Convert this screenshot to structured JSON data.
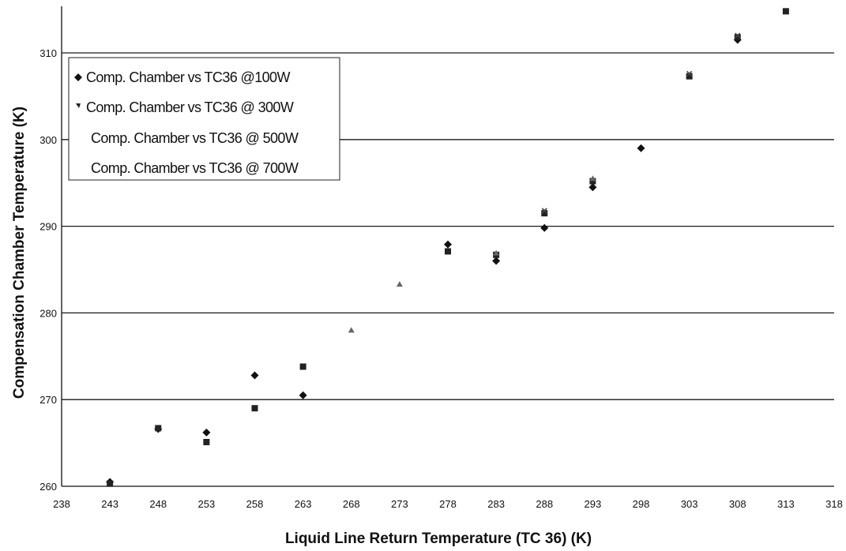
{
  "chart_data": {
    "type": "scatter",
    "title": "",
    "xlabel": "Liquid Line Return Temperature (TC 36) (K)",
    "ylabel": "Compensation Chamber Temperature (K)",
    "xlim": [
      238,
      318
    ],
    "ylim": [
      260,
      310
    ],
    "xticks": [
      238,
      243,
      248,
      253,
      258,
      263,
      268,
      273,
      278,
      283,
      288,
      293,
      298,
      303,
      308,
      313,
      318
    ],
    "yticks": [
      260,
      270,
      280,
      290,
      300,
      310
    ],
    "grid": "horizontal",
    "legend_position": "top-left",
    "series": [
      {
        "name": "Comp. Chamber vs TC36 @100W",
        "marker": "diamond",
        "color": "#111111",
        "points": [
          [
            243,
            260.5
          ],
          [
            248,
            266.6
          ],
          [
            253,
            266.2
          ],
          [
            258,
            272.8
          ],
          [
            263,
            270.5
          ],
          [
            278,
            287.9
          ],
          [
            283,
            286.0
          ],
          [
            288,
            289.8
          ],
          [
            293,
            294.5
          ],
          [
            298,
            299.0
          ],
          [
            308,
            311.5
          ]
        ]
      },
      {
        "name": "Comp. Chamber vs TC36 @ 300W",
        "marker": "square",
        "color": "#222222",
        "points": [
          [
            243,
            260.3
          ],
          [
            248,
            266.7
          ],
          [
            253,
            265.1
          ],
          [
            258,
            269.0
          ],
          [
            263,
            273.8
          ],
          [
            278,
            287.1
          ],
          [
            283,
            286.7
          ],
          [
            288,
            291.5
          ],
          [
            293,
            295.2
          ],
          [
            303,
            307.3
          ],
          [
            308,
            311.8
          ],
          [
            313,
            314.8
          ]
        ]
      },
      {
        "name": "Comp. Chamber vs TC36 @ 500W",
        "marker": "triangle",
        "color": "#666666",
        "points": [
          [
            268,
            278.0
          ],
          [
            273,
            283.3
          ],
          [
            283,
            286.9
          ],
          [
            293,
            295.5
          ]
        ]
      },
      {
        "name": "Comp. Chamber vs TC36 @ 700W",
        "marker": "x",
        "color": "#444444",
        "points": [
          [
            288,
            291.8
          ],
          [
            303,
            307.6
          ],
          [
            308,
            312.0
          ]
        ]
      }
    ]
  }
}
